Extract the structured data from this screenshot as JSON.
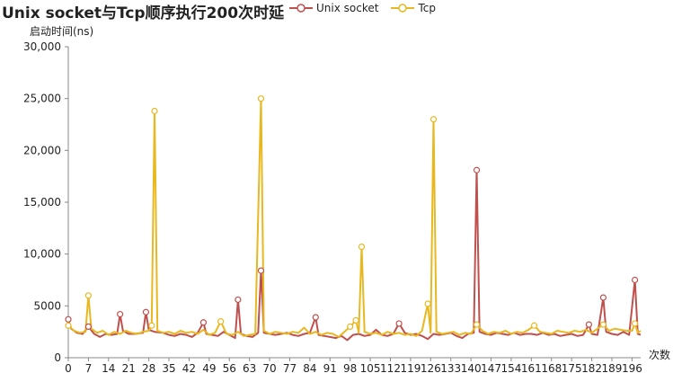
{
  "chart_data": {
    "type": "line",
    "title": "Unix socket与Tcp顺序执行200次时延",
    "ylabel": "启动时间(ns)",
    "xlabel": "次数",
    "ylim": [
      0,
      30000
    ],
    "yticks": [
      0,
      5000,
      10000,
      15000,
      20000,
      25000,
      30000
    ],
    "ytick_labels": [
      "0",
      "5000",
      "10,000",
      "15,000",
      "20,000",
      "25,000",
      "30,000"
    ],
    "xlim": [
      0,
      199
    ],
    "xticks": [
      0,
      7,
      14,
      21,
      28,
      35,
      42,
      49,
      56,
      63,
      70,
      77,
      84,
      91,
      98,
      105,
      112,
      119,
      126,
      133,
      140,
      147,
      154,
      161,
      168,
      175,
      182,
      189,
      196
    ],
    "legend_position": "top",
    "grid": false,
    "series": [
      {
        "name": "Unix socket",
        "color": "#c0504d",
        "points": [
          [
            0,
            3700
          ],
          [
            1,
            2800
          ],
          [
            3,
            2400
          ],
          [
            5,
            2300
          ],
          [
            7,
            3000
          ],
          [
            9,
            2300
          ],
          [
            11,
            2000
          ],
          [
            13,
            2300
          ],
          [
            15,
            2200
          ],
          [
            17,
            2300
          ],
          [
            18,
            4200
          ],
          [
            19,
            2600
          ],
          [
            21,
            2300
          ],
          [
            23,
            2300
          ],
          [
            26,
            2400
          ],
          [
            27,
            4400
          ],
          [
            28,
            2700
          ],
          [
            30,
            2500
          ],
          [
            33,
            2400
          ],
          [
            35,
            2200
          ],
          [
            37,
            2100
          ],
          [
            39,
            2300
          ],
          [
            41,
            2200
          ],
          [
            43,
            2000
          ],
          [
            45,
            2400
          ],
          [
            47,
            3400
          ],
          [
            48,
            2300
          ],
          [
            50,
            2200
          ],
          [
            52,
            2100
          ],
          [
            54,
            2500
          ],
          [
            56,
            2200
          ],
          [
            58,
            1900
          ],
          [
            59,
            5600
          ],
          [
            60,
            2300
          ],
          [
            62,
            2100
          ],
          [
            64,
            2000
          ],
          [
            66,
            2400
          ],
          [
            67,
            8400
          ],
          [
            68,
            2400
          ],
          [
            70,
            2300
          ],
          [
            72,
            2200
          ],
          [
            74,
            2300
          ],
          [
            76,
            2400
          ],
          [
            78,
            2200
          ],
          [
            80,
            2100
          ],
          [
            82,
            2300
          ],
          [
            84,
            2400
          ],
          [
            86,
            3900
          ],
          [
            87,
            2200
          ],
          [
            89,
            2100
          ],
          [
            91,
            2000
          ],
          [
            93,
            1900
          ],
          [
            95,
            2100
          ],
          [
            97,
            1700
          ],
          [
            99,
            2200
          ],
          [
            101,
            2300
          ],
          [
            103,
            2100
          ],
          [
            105,
            2200
          ],
          [
            107,
            2700
          ],
          [
            109,
            2200
          ],
          [
            111,
            2100
          ],
          [
            113,
            2300
          ],
          [
            115,
            3300
          ],
          [
            117,
            2400
          ],
          [
            119,
            2200
          ],
          [
            121,
            2300
          ],
          [
            123,
            2100
          ],
          [
            125,
            1800
          ],
          [
            127,
            2300
          ],
          [
            129,
            2200
          ],
          [
            131,
            2300
          ],
          [
            133,
            2400
          ],
          [
            135,
            2100
          ],
          [
            137,
            1900
          ],
          [
            139,
            2300
          ],
          [
            141,
            2400
          ],
          [
            142,
            18100
          ],
          [
            143,
            2500
          ],
          [
            145,
            2300
          ],
          [
            147,
            2200
          ],
          [
            149,
            2400
          ],
          [
            151,
            2300
          ],
          [
            153,
            2200
          ],
          [
            155,
            2400
          ],
          [
            157,
            2200
          ],
          [
            159,
            2300
          ],
          [
            161,
            2300
          ],
          [
            163,
            2200
          ],
          [
            165,
            2400
          ],
          [
            167,
            2200
          ],
          [
            169,
            2300
          ],
          [
            171,
            2100
          ],
          [
            173,
            2200
          ],
          [
            175,
            2300
          ],
          [
            177,
            2100
          ],
          [
            179,
            2200
          ],
          [
            181,
            3200
          ],
          [
            182,
            2300
          ],
          [
            184,
            2200
          ],
          [
            186,
            5800
          ],
          [
            187,
            2500
          ],
          [
            189,
            2300
          ],
          [
            191,
            2200
          ],
          [
            193,
            2500
          ],
          [
            195,
            2200
          ],
          [
            197,
            7500
          ],
          [
            198,
            2300
          ],
          [
            199,
            2200
          ]
        ]
      },
      {
        "name": "Tcp",
        "color": "#e8b820",
        "points": [
          [
            0,
            3100
          ],
          [
            2,
            2600
          ],
          [
            4,
            2400
          ],
          [
            6,
            2500
          ],
          [
            7,
            6000
          ],
          [
            8,
            2800
          ],
          [
            10,
            2400
          ],
          [
            12,
            2600
          ],
          [
            14,
            2200
          ],
          [
            16,
            2500
          ],
          [
            18,
            2300
          ],
          [
            20,
            2600
          ],
          [
            22,
            2400
          ],
          [
            24,
            2300
          ],
          [
            26,
            2500
          ],
          [
            28,
            2600
          ],
          [
            29,
            3100
          ],
          [
            30,
            23800
          ],
          [
            31,
            2600
          ],
          [
            33,
            2400
          ],
          [
            35,
            2500
          ],
          [
            37,
            2300
          ],
          [
            39,
            2600
          ],
          [
            41,
            2400
          ],
          [
            43,
            2500
          ],
          [
            45,
            2300
          ],
          [
            47,
            2700
          ],
          [
            49,
            2200
          ],
          [
            51,
            2400
          ],
          [
            53,
            3500
          ],
          [
            55,
            2300
          ],
          [
            57,
            2200
          ],
          [
            59,
            2500
          ],
          [
            61,
            2100
          ],
          [
            63,
            2200
          ],
          [
            65,
            2300
          ],
          [
            67,
            25000
          ],
          [
            68,
            2600
          ],
          [
            70,
            2300
          ],
          [
            72,
            2500
          ],
          [
            74,
            2400
          ],
          [
            76,
            2300
          ],
          [
            78,
            2500
          ],
          [
            80,
            2400
          ],
          [
            82,
            2900
          ],
          [
            84,
            2300
          ],
          [
            86,
            2500
          ],
          [
            88,
            2200
          ],
          [
            90,
            2400
          ],
          [
            92,
            2300
          ],
          [
            94,
            2000
          ],
          [
            96,
            2500
          ],
          [
            98,
            3000
          ],
          [
            100,
            3600
          ],
          [
            101,
            2400
          ],
          [
            102,
            10700
          ],
          [
            103,
            2500
          ],
          [
            105,
            2300
          ],
          [
            107,
            2400
          ],
          [
            109,
            2200
          ],
          [
            111,
            2500
          ],
          [
            113,
            2300
          ],
          [
            115,
            2400
          ],
          [
            117,
            2200
          ],
          [
            119,
            2300
          ],
          [
            121,
            2100
          ],
          [
            123,
            2600
          ],
          [
            125,
            5200
          ],
          [
            126,
            2400
          ],
          [
            127,
            23000
          ],
          [
            128,
            2500
          ],
          [
            130,
            2300
          ],
          [
            132,
            2400
          ],
          [
            134,
            2500
          ],
          [
            136,
            2200
          ],
          [
            138,
            2400
          ],
          [
            140,
            2300
          ],
          [
            142,
            3200
          ],
          [
            144,
            2600
          ],
          [
            146,
            2300
          ],
          [
            148,
            2500
          ],
          [
            150,
            2400
          ],
          [
            152,
            2600
          ],
          [
            154,
            2300
          ],
          [
            156,
            2500
          ],
          [
            158,
            2400
          ],
          [
            160,
            2700
          ],
          [
            162,
            3100
          ],
          [
            164,
            2500
          ],
          [
            166,
            2400
          ],
          [
            168,
            2300
          ],
          [
            170,
            2600
          ],
          [
            172,
            2500
          ],
          [
            174,
            2400
          ],
          [
            176,
            2600
          ],
          [
            178,
            2500
          ],
          [
            180,
            2700
          ],
          [
            182,
            2400
          ],
          [
            184,
            2800
          ],
          [
            186,
            3200
          ],
          [
            188,
            2600
          ],
          [
            190,
            2800
          ],
          [
            192,
            2700
          ],
          [
            194,
            2600
          ],
          [
            196,
            2600
          ],
          [
            197,
            3300
          ],
          [
            198,
            2400
          ],
          [
            199,
            2600
          ]
        ]
      }
    ]
  }
}
